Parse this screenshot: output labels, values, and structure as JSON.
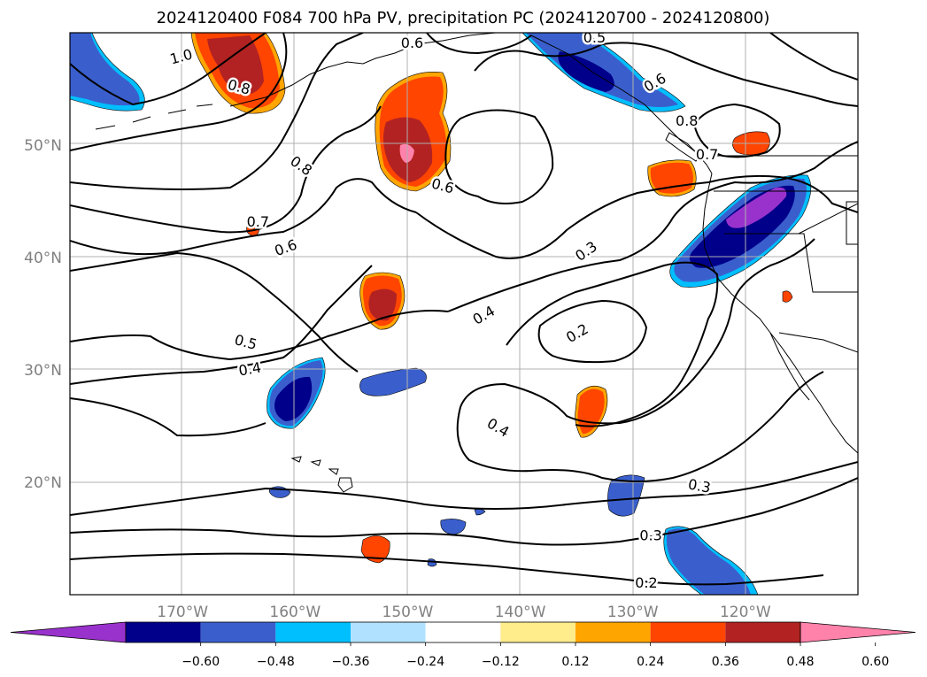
{
  "title": "2024120400 F084 700 hPa PV, precipitation PC (2024120700 - 2024120800)",
  "lon_ticks": [
    {
      "lon": -170,
      "label": "170°W"
    },
    {
      "lon": -160,
      "label": "160°W"
    },
    {
      "lon": -150,
      "label": "150°W"
    },
    {
      "lon": -140,
      "label": "140°W"
    },
    {
      "lon": -130,
      "label": "130°W"
    },
    {
      "lon": -120,
      "label": "120°W"
    }
  ],
  "lat_ticks": [
    {
      "lat": 50,
      "label": "50°N"
    },
    {
      "lat": 40,
      "label": "40°N"
    },
    {
      "lat": 30,
      "label": "30°N"
    },
    {
      "lat": 20,
      "label": "20°N"
    }
  ],
  "colorbar": {
    "colors": [
      "#9932cc",
      "#00008b",
      "#3a5fcd",
      "#00bfff",
      "#b0e2ff",
      "#ffffff",
      "#ffec8b",
      "#ffa500",
      "#ff4500",
      "#b22222",
      "#ff82ab"
    ],
    "tick_labels": [
      "−0.60",
      "−0.48",
      "−0.36",
      "−0.24",
      "−0.12",
      "0.12",
      "0.24",
      "0.36",
      "0.48",
      "0.60"
    ]
  },
  "contour_labels": [
    {
      "text": "1.0",
      "lon": -170.1,
      "lat": 57.8,
      "rot": -15
    },
    {
      "text": "0.8",
      "lon": -165.0,
      "lat": 55.1,
      "rot": 15
    },
    {
      "text": "0.8",
      "lon": -159.5,
      "lat": 48.1,
      "rot": 35
    },
    {
      "text": "0.7",
      "lon": -163.3,
      "lat": 43.1,
      "rot": 0
    },
    {
      "text": "0.6",
      "lon": -160.8,
      "lat": 40.8,
      "rot": -20
    },
    {
      "text": "0.6",
      "lon": -149.6,
      "lat": 59.0,
      "rot": 0
    },
    {
      "text": "0.6",
      "lon": -146.9,
      "lat": 46.3,
      "rot": 15
    },
    {
      "text": "0.5",
      "lon": -164.4,
      "lat": 32.4,
      "rot": 15
    },
    {
      "text": "0.4",
      "lon": -164.0,
      "lat": 30.0,
      "rot": -10
    },
    {
      "text": "0.4",
      "lon": -143.2,
      "lat": 34.8,
      "rot": -30
    },
    {
      "text": "0.4",
      "lon": -142.0,
      "lat": 24.8,
      "rot": 30
    },
    {
      "text": "0.2",
      "lon": -134.9,
      "lat": 33.2,
      "rot": -30
    },
    {
      "text": "0.3",
      "lon": -134.1,
      "lat": 40.5,
      "rot": -35
    },
    {
      "text": "0.5",
      "lon": -133.4,
      "lat": 59.5,
      "rot": 0
    },
    {
      "text": "0.6",
      "lon": -128.0,
      "lat": 55.5,
      "rot": -30
    },
    {
      "text": "0.8",
      "lon": -125.2,
      "lat": 52.1,
      "rot": 0
    },
    {
      "text": "0.7",
      "lon": -123.4,
      "lat": 49.1,
      "rot": 0
    },
    {
      "text": "0.3",
      "lon": -128.4,
      "lat": 15.2,
      "rot": 0
    },
    {
      "text": "0.3",
      "lon": -124.1,
      "lat": 19.6,
      "rot": 10
    },
    {
      "text": "0.2",
      "lon": -128.8,
      "lat": 11.0,
      "rot": 0
    }
  ]
}
